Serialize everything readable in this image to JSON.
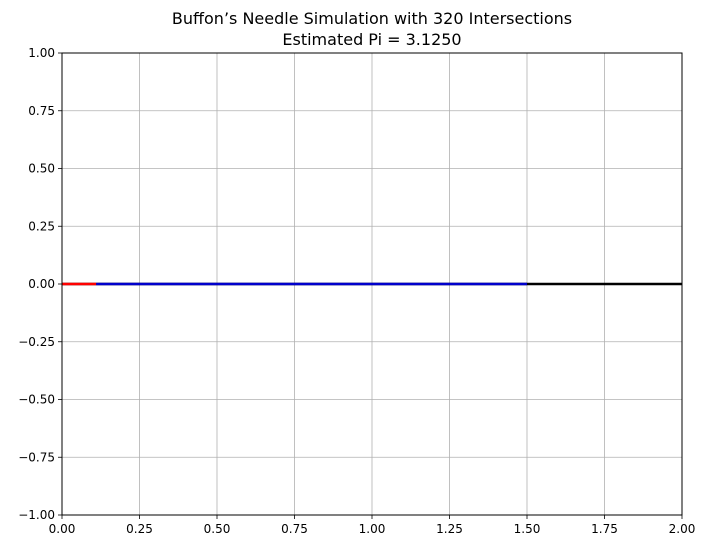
{
  "chart_data": {
    "type": "line",
    "title_line1": "Buffon’s Needle Simulation with 320 Intersections",
    "title_line2": "Estimated Pi = 3.1250",
    "xlabel": "",
    "ylabel": "",
    "xlim": [
      0.0,
      2.0
    ],
    "ylim": [
      -1.0,
      1.0
    ],
    "grid": true,
    "legend": "none",
    "x_ticks": [
      "0.00",
      "0.25",
      "0.50",
      "0.75",
      "1.00",
      "1.25",
      "1.50",
      "1.75",
      "2.00"
    ],
    "y_ticks": [
      "1.00",
      "0.75",
      "0.50",
      "0.25",
      "0.00",
      "−0.25",
      "−0.50",
      "−0.75",
      "−1.00"
    ],
    "x_tick_values": [
      0,
      0.25,
      0.5,
      0.75,
      1.0,
      1.25,
      1.5,
      1.75,
      2.0
    ],
    "y_tick_values": [
      1.0,
      0.75,
      0.5,
      0.25,
      0.0,
      -0.25,
      -0.5,
      -0.75,
      -1.0
    ],
    "series": [
      {
        "x": [
          0.0,
          2.0
        ],
        "y": [
          0.0,
          0.0
        ],
        "color": "#000000"
      },
      {
        "x": [
          0.11,
          1.5
        ],
        "y": [
          0.0,
          0.0
        ],
        "color": "#0000cc"
      },
      {
        "x": [
          0.0,
          0.11
        ],
        "y": [
          0.0,
          0.0
        ],
        "color": "#ff0000"
      }
    ]
  }
}
